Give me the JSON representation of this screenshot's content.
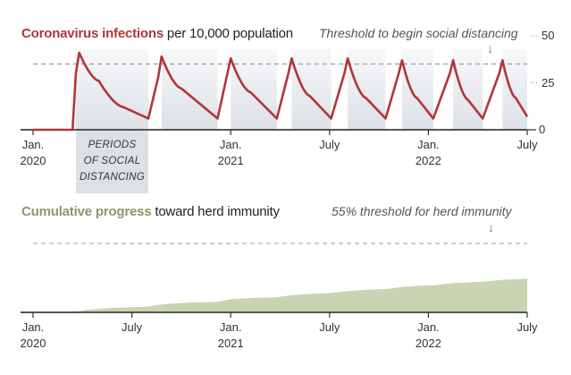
{
  "chart_data": [
    {
      "type": "line",
      "title_bold": "Coronavirus infections",
      "title_rest": " per 10,000 population",
      "xlabel": "",
      "ylabel": "",
      "ylim": [
        0,
        50
      ],
      "yticks": [
        {
          "value": 50,
          "label": "50"
        },
        {
          "value": 25,
          "label": "25"
        },
        {
          "value": 0,
          "label": "0"
        }
      ],
      "xlim_months": [
        0,
        30
      ],
      "xticks": [
        {
          "month": 0,
          "line1": "Jan.",
          "line2": "2020"
        },
        {
          "month": 6,
          "line1": "July",
          "line2": ""
        },
        {
          "month": 12,
          "line1": "Jan.",
          "line2": "2021"
        },
        {
          "month": 18,
          "line1": "July",
          "line2": ""
        },
        {
          "month": 24,
          "line1": "Jan.",
          "line2": "2022"
        },
        {
          "month": 30,
          "line1": "July",
          "line2": ""
        }
      ],
      "threshold": {
        "value": 35,
        "label": "Threshold to begin social distancing"
      },
      "distancing_label": "PERIODS\nOF SOCIAL\nDISTANCING",
      "distancing_periods_months": [
        [
          2.6,
          7.0
        ],
        [
          7.8,
          11.2
        ],
        [
          12.0,
          14.8
        ],
        [
          15.7,
          18.1
        ],
        [
          19.1,
          21.4
        ],
        [
          22.4,
          24.3
        ],
        [
          25.5,
          27.3
        ],
        [
          28.5,
          30.0
        ]
      ],
      "series": [
        {
          "name": "Infections per 10,000",
          "color": "#b0363a",
          "points": [
            [
              0,
              0
            ],
            [
              2.4,
              0
            ],
            [
              2.6,
              30
            ],
            [
              2.8,
              41
            ],
            [
              4.0,
              26
            ],
            [
              5.5,
              12
            ],
            [
              7.0,
              6
            ],
            [
              7.6,
              28
            ],
            [
              7.8,
              39
            ],
            [
              9.0,
              22
            ],
            [
              11.2,
              6
            ],
            [
              11.8,
              30
            ],
            [
              12.0,
              38
            ],
            [
              13.2,
              20
            ],
            [
              14.8,
              6
            ],
            [
              15.5,
              30
            ],
            [
              15.7,
              38
            ],
            [
              16.8,
              18
            ],
            [
              18.1,
              6
            ],
            [
              18.9,
              30
            ],
            [
              19.1,
              38
            ],
            [
              20.2,
              17
            ],
            [
              21.4,
              6
            ],
            [
              22.2,
              30
            ],
            [
              22.4,
              37
            ],
            [
              23.3,
              17
            ],
            [
              24.3,
              6
            ],
            [
              25.3,
              30
            ],
            [
              25.5,
              37
            ],
            [
              26.4,
              16
            ],
            [
              27.3,
              6
            ],
            [
              28.3,
              30
            ],
            [
              28.5,
              37
            ],
            [
              29.3,
              17
            ],
            [
              30.0,
              7
            ]
          ]
        }
      ]
    },
    {
      "type": "area",
      "title_bold": "Cumulative progress",
      "title_rest": " toward herd immunity",
      "ylim": [
        0,
        60
      ],
      "unit": "%",
      "xlim_months": [
        0,
        30
      ],
      "xticks": [
        {
          "month": 0,
          "line1": "Jan.",
          "line2": "2020"
        },
        {
          "month": 6,
          "line1": "July",
          "line2": ""
        },
        {
          "month": 12,
          "line1": "Jan.",
          "line2": "2021"
        },
        {
          "month": 18,
          "line1": "July",
          "line2": ""
        },
        {
          "month": 24,
          "line1": "Jan.",
          "line2": "2022"
        },
        {
          "month": 30,
          "line1": "July",
          "line2": ""
        }
      ],
      "threshold": {
        "value": 55,
        "label": "55% threshold for herd immunity"
      },
      "series": [
        {
          "name": "Cumulative progress toward herd immunity",
          "color": "#c9d4b3",
          "points": [
            [
              0,
              0
            ],
            [
              2.4,
              0
            ],
            [
              3.2,
              2
            ],
            [
              4.5,
              3.3
            ],
            [
              6.0,
              4.2
            ],
            [
              7.0,
              4.6
            ],
            [
              7.9,
              6.5
            ],
            [
              9.5,
              7.8
            ],
            [
              11.2,
              8.5
            ],
            [
              12.0,
              10.5
            ],
            [
              13.5,
              11.6
            ],
            [
              14.8,
              12.0
            ],
            [
              15.7,
              13.8
            ],
            [
              17.0,
              14.8
            ],
            [
              18.1,
              15.4
            ],
            [
              19.1,
              17.0
            ],
            [
              20.5,
              18.2
            ],
            [
              21.4,
              18.6
            ],
            [
              22.4,
              20.3
            ],
            [
              23.5,
              21.2
            ],
            [
              24.3,
              21.6
            ],
            [
              25.5,
              23.3
            ],
            [
              26.5,
              24.0
            ],
            [
              27.3,
              24.4
            ],
            [
              28.5,
              26.0
            ],
            [
              30.0,
              26.8
            ]
          ]
        }
      ]
    }
  ],
  "colors": {
    "infection_red": "#b0363a",
    "herd_green": "#8a9a6b",
    "area_green": "#c9d4b3",
    "band_gray": "#dde1e6"
  },
  "arrow_glyph": "↓"
}
